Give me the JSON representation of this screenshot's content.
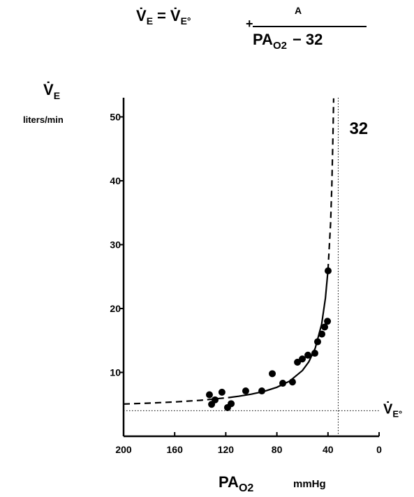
{
  "chart_data": {
    "type": "scatter",
    "equation": {
      "lhs": "V̇",
      "lhs_sub": "E",
      "eq": "=",
      "rhs": "V̇",
      "rhs_sub": "E°",
      "plus": "+",
      "numerator": "A",
      "den": "PA",
      "den_sub": "O2",
      "den_rest": "− 32"
    },
    "y_label": {
      "main": "V̇",
      "sub": "E"
    },
    "y_unit": "liters/min",
    "x_label": {
      "main": "PA",
      "sub": "O2"
    },
    "x_unit": "mmHg",
    "xlim": [
      200,
      0
    ],
    "ylim": [
      0,
      53
    ],
    "xticks": [
      200,
      160,
      120,
      80,
      40,
      0
    ],
    "yticks": [
      10,
      20,
      30,
      40,
      50
    ],
    "color": "#000000",
    "points": {
      "x": [
        132.8,
        131.1,
        128.4,
        123,
        118.6,
        115.8,
        104.4,
        91.8,
        83.6,
        75.4,
        67.8,
        63.9,
        60.1,
        55.7,
        50.3,
        48.1,
        44.8,
        42.6,
        40.4,
        39.9
      ],
      "values": [
        6.5,
        5.0,
        5.7,
        6.9,
        4.5,
        5.1,
        7.1,
        7.1,
        9.8,
        8.3,
        8.5,
        11.6,
        12.1,
        12.7,
        13.0,
        14.8,
        16.0,
        17.1,
        18.0,
        25.9
      ]
    },
    "series": [
      {
        "style": "dashed",
        "x": [
          200,
          180,
          160,
          140,
          118
        ],
        "values": [
          5.05,
          5.19,
          5.38,
          5.63,
          6.05
        ]
      },
      {
        "style": "solid",
        "x": [
          118,
          110,
          100,
          90,
          80,
          70,
          60,
          55,
          50,
          45,
          42,
          40
        ],
        "values": [
          6.05,
          6.26,
          6.59,
          7.03,
          7.67,
          8.63,
          10.29,
          11.65,
          13.78,
          17.54,
          21.6,
          26.0
        ]
      },
      {
        "style": "dashed",
        "x": [
          40,
          38,
          37,
          36,
          35.6
        ],
        "values": [
          26.0,
          33.3,
          39.2,
          48,
          52.9
        ]
      }
    ],
    "reference_lines": [
      {
        "axis": "x",
        "value": 32
      },
      {
        "axis": "y",
        "value": 4,
        "label": "V̇",
        "label_sub": "E°"
      }
    ]
  }
}
